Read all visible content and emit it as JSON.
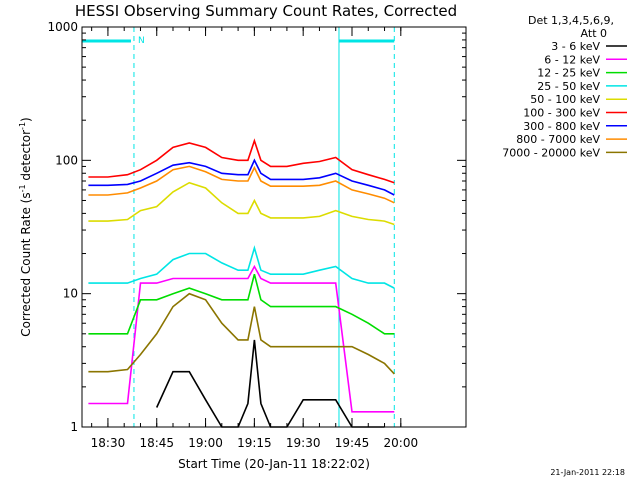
{
  "chart_data": {
    "type": "line",
    "title": "HESSI Observing Summary Count Rates, Corrected",
    "xlabel": "Start Time (20-Jan-11 18:22:02)",
    "ylabel_main": "Corrected Count Rate (s",
    "ylabel_sup1": "-1",
    "ylabel_mid": " detector",
    "ylabel_sup2": "-1",
    "ylabel_end": ")",
    "yscale": "log",
    "ylim": [
      1,
      1000
    ],
    "y_ticks": [
      "1",
      "10",
      "100",
      "1000"
    ],
    "x_ticks": [
      "18:30",
      "18:45",
      "19:00",
      "19:15",
      "19:30",
      "19:45",
      "20:00"
    ],
    "xlim_minutes": [
      -4.5,
      0.0
    ],
    "legend_header": [
      "Det 1,3,4,5,6,9,",
      "Att 0"
    ],
    "legend_placement": "right, outside plot",
    "night_marker_label": "N",
    "timestamp": "21-Jan-2011 22:18",
    "x_times": [
      "18:24",
      "18:30",
      "18:36",
      "18:40",
      "18:45",
      "18:50",
      "18:55",
      "19:00",
      "19:05",
      "19:10",
      "19:13",
      "19:15",
      "19:17",
      "19:20",
      "19:25",
      "19:30",
      "19:35",
      "19:40",
      "19:45",
      "19:50",
      "19:55",
      "19:58"
    ],
    "series": [
      {
        "name": "3 - 6 keV",
        "color": "#000000",
        "values": [
          null,
          null,
          null,
          null,
          1.4,
          2.6,
          2.6,
          1.6,
          1,
          1,
          1.5,
          4.5,
          1.5,
          1,
          1,
          1.6,
          1.6,
          1.6,
          1,
          1,
          1,
          null
        ]
      },
      {
        "name": "6 - 12 keV",
        "color": "#ff00ff",
        "values": [
          1.5,
          1.5,
          1.5,
          12,
          12,
          13,
          13,
          13,
          13,
          13,
          13,
          16,
          13,
          12,
          12,
          12,
          12,
          12,
          1.3,
          1.3,
          1.3,
          1.3
        ]
      },
      {
        "name": "12 - 25 keV",
        "color": "#00dd00",
        "values": [
          5,
          5,
          5,
          9,
          9,
          10,
          11,
          10,
          9,
          9,
          9,
          14,
          9,
          8,
          8,
          8,
          8,
          8,
          7,
          6,
          5,
          5
        ]
      },
      {
        "name": "25 - 50 keV",
        "color": "#00e5e5",
        "values": [
          12,
          12,
          12,
          13,
          14,
          18,
          20,
          20,
          17,
          15,
          15,
          22,
          15,
          14,
          14,
          14,
          15,
          16,
          13,
          12,
          12,
          11
        ]
      },
      {
        "name": "50 - 100 keV",
        "color": "#dcdc00",
        "values": [
          35,
          35,
          36,
          42,
          45,
          58,
          68,
          62,
          48,
          40,
          40,
          50,
          40,
          37,
          37,
          37,
          38,
          42,
          38,
          36,
          35,
          33
        ]
      },
      {
        "name": "100 - 300 keV",
        "color": "#ff0000",
        "values": [
          75,
          75,
          78,
          85,
          100,
          125,
          135,
          125,
          105,
          100,
          100,
          140,
          100,
          90,
          90,
          95,
          98,
          105,
          85,
          78,
          72,
          68
        ]
      },
      {
        "name": "300 - 800 keV",
        "color": "#0000ff",
        "values": [
          65,
          65,
          66,
          70,
          80,
          92,
          96,
          90,
          80,
          78,
          78,
          100,
          80,
          72,
          72,
          72,
          74,
          80,
          70,
          65,
          60,
          55
        ]
      },
      {
        "name": "800 - 7000 keV",
        "color": "#ff8c00",
        "values": [
          55,
          55,
          57,
          62,
          70,
          85,
          90,
          82,
          72,
          70,
          70,
          88,
          70,
          64,
          64,
          64,
          65,
          70,
          60,
          56,
          52,
          48
        ]
      },
      {
        "name": "7000 - 20000 keV",
        "color": "#8b7500",
        "values": [
          2.6,
          2.6,
          2.7,
          3.5,
          5,
          8,
          10,
          9,
          6,
          4.5,
          4.5,
          8,
          4.5,
          4,
          4,
          4,
          4,
          4,
          4,
          3.5,
          3,
          2.5
        ]
      }
    ]
  }
}
